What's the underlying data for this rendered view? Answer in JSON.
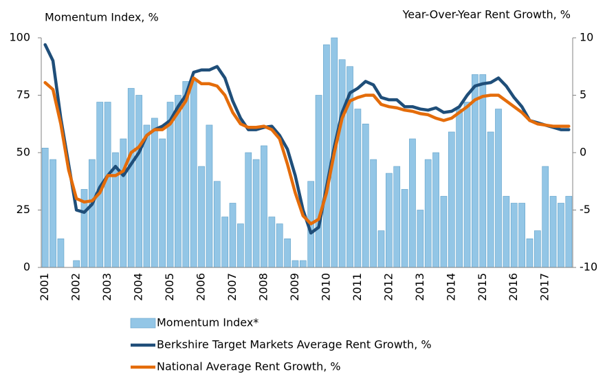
{
  "chart_data": {
    "type": "bar",
    "y_label": "Momentum Index, %",
    "y2_label": "Year-Over-Year Rent Growth, %",
    "categories": [
      "2001",
      null,
      null,
      null,
      "2002",
      null,
      null,
      null,
      "2003",
      null,
      null,
      null,
      "2004",
      null,
      null,
      null,
      "2005",
      null,
      null,
      null,
      "2006",
      null,
      null,
      null,
      "2007",
      null,
      null,
      null,
      "2008",
      null,
      null,
      null,
      "2009",
      null,
      null,
      null,
      "2010",
      null,
      null,
      null,
      "2011",
      null,
      null,
      null,
      "2012",
      null,
      null,
      null,
      "2013",
      null,
      null,
      null,
      "2014",
      null,
      null,
      null,
      "2015",
      null,
      null,
      null,
      "2016",
      null,
      null,
      null,
      "2017",
      null,
      null,
      null
    ],
    "ylim": [
      0,
      100
    ],
    "yticks": [
      0,
      25,
      50,
      75,
      100
    ],
    "y2lim": [
      -10,
      10
    ],
    "y2ticks": [
      -10,
      -5,
      0,
      5,
      10
    ],
    "series": [
      {
        "name": "Momentum Index*",
        "type": "bar",
        "color": "#93c6e6",
        "axis": "y",
        "values": [
          52,
          47,
          12.5,
          0,
          3,
          34,
          47,
          72,
          72,
          50,
          56,
          78,
          75,
          62,
          65,
          56,
          72,
          75,
          81,
          81,
          44,
          62,
          37.5,
          22,
          28,
          19,
          50,
          47,
          53,
          22,
          19,
          12.5,
          3,
          3,
          37.5,
          75,
          97,
          100,
          90.5,
          87.5,
          69,
          62.5,
          47,
          16,
          41,
          44,
          34,
          56,
          25,
          47,
          50,
          31,
          59,
          69,
          72,
          84,
          84,
          59,
          69,
          31,
          28,
          28,
          12.5,
          16,
          44,
          31,
          28,
          31
        ]
      },
      {
        "name": "Berkshire Target Markets Average Rent Growth, %",
        "type": "line",
        "color": "#1f4e79",
        "axis": "y2",
        "values": [
          9.4,
          8,
          3,
          -1,
          -5,
          -5.2,
          -4.5,
          -3,
          -2,
          -1.2,
          -2,
          -1,
          0,
          1.5,
          2,
          2.3,
          2.8,
          4,
          5,
          7,
          7.2,
          7.2,
          7.5,
          6.5,
          4.5,
          3,
          2,
          2,
          2.2,
          2.3,
          1.5,
          0.3,
          -2,
          -5,
          -7,
          -6.5,
          -3,
          0.5,
          3.5,
          5.2,
          5.6,
          6.2,
          5.9,
          4.8,
          4.6,
          4.6,
          4,
          4,
          3.8,
          3.7,
          3.9,
          3.5,
          3.6,
          4,
          5,
          5.8,
          6,
          6.1,
          6.5,
          5.8,
          4.8,
          4,
          2.8,
          2.6,
          2.4,
          2.2,
          2,
          2
        ]
      },
      {
        "name": "National Average Rent Growth, %",
        "type": "line",
        "color": "#e46c0a",
        "axis": "y2",
        "values": [
          6.1,
          5.5,
          2.5,
          -1.5,
          -4,
          -4.3,
          -4.2,
          -3.5,
          -2,
          -2,
          -1.6,
          0,
          0.5,
          1.5,
          2,
          2,
          2.5,
          3.5,
          4.5,
          6.5,
          6,
          6,
          5.8,
          5,
          3.5,
          2.5,
          2.2,
          2.2,
          2.3,
          2,
          1.2,
          -1,
          -3.5,
          -5.5,
          -6.2,
          -5.8,
          -3.5,
          0,
          3,
          4.5,
          4.8,
          5,
          5,
          4.2,
          4,
          3.9,
          3.7,
          3.6,
          3.4,
          3.3,
          3,
          2.8,
          3,
          3.5,
          4,
          4.6,
          4.9,
          5,
          5,
          4.5,
          4,
          3.5,
          2.8,
          2.5,
          2.4,
          2.3,
          2.3,
          2.3
        ]
      }
    ]
  }
}
